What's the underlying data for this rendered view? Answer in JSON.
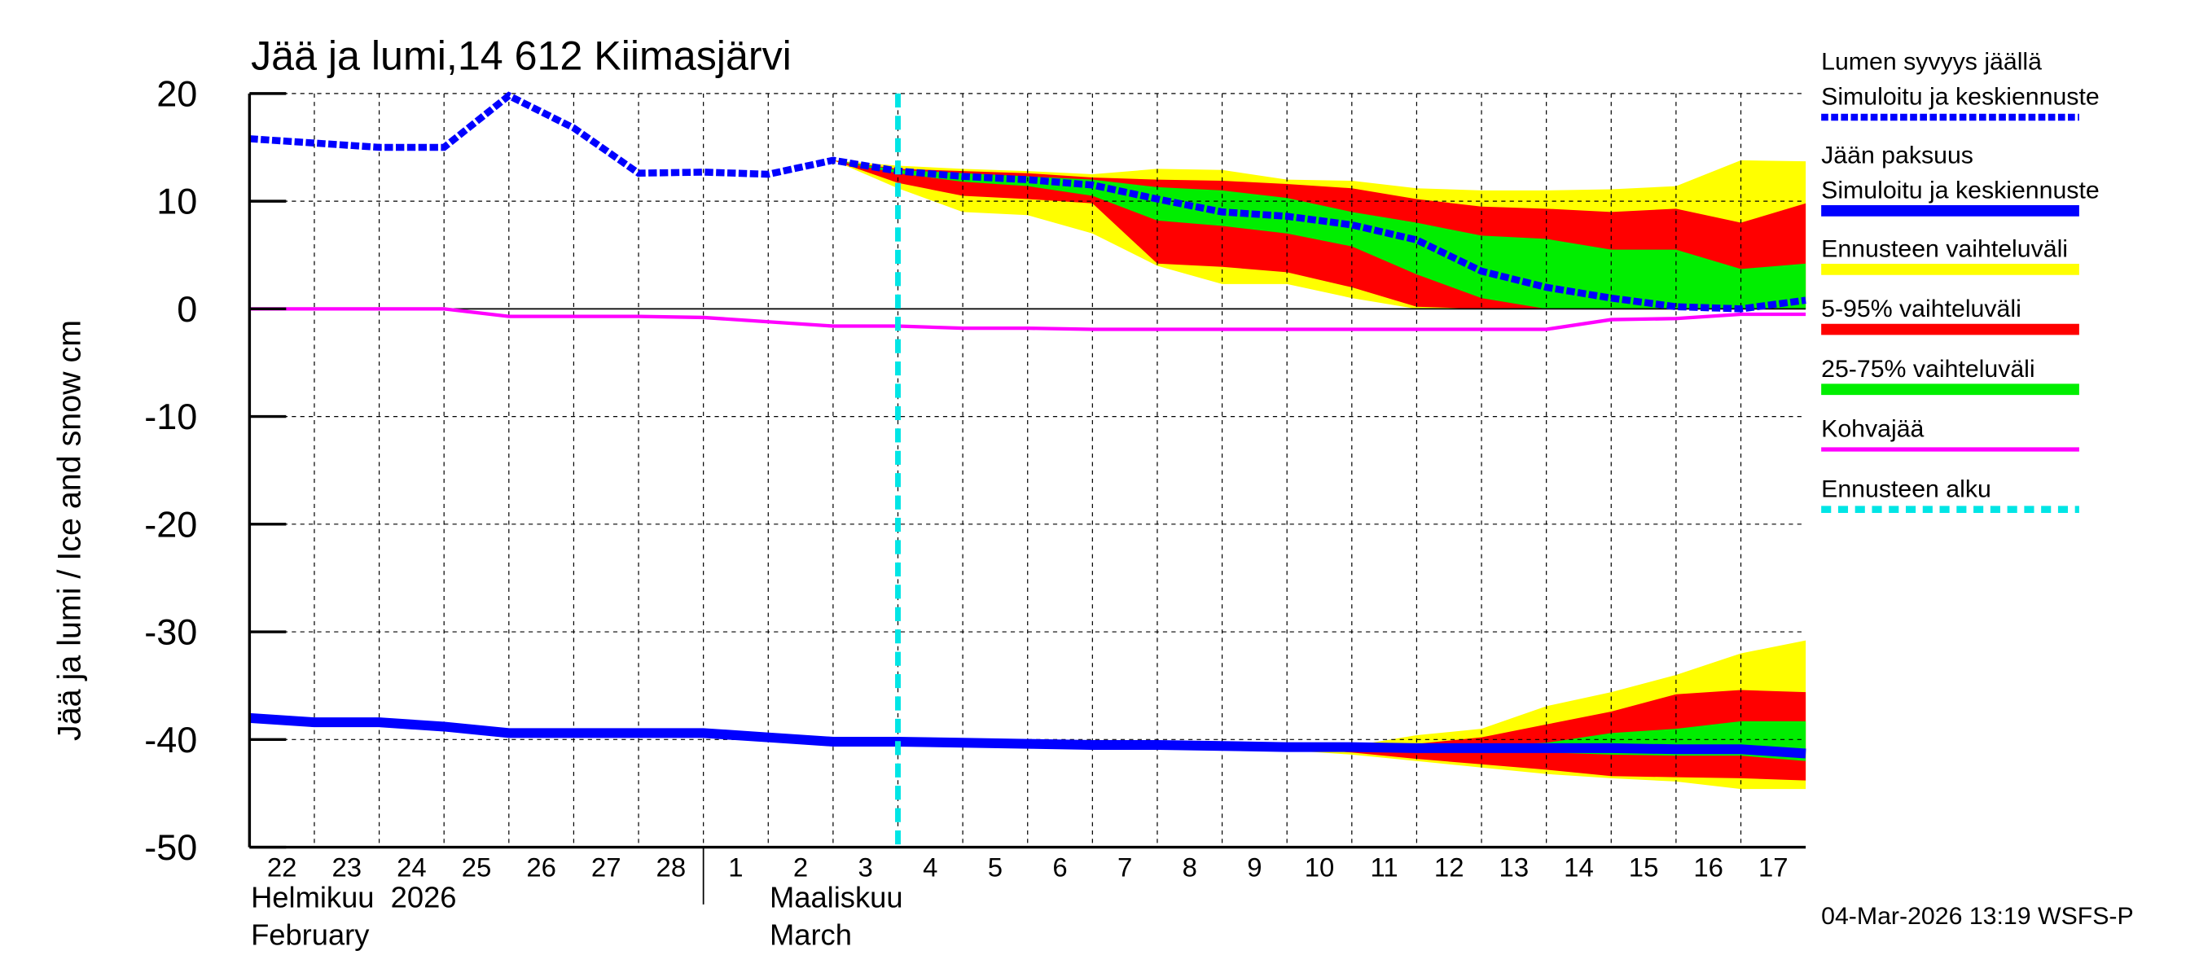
{
  "chart_data": {
    "type": "area",
    "title": "Jää ja lumi,14 612 Kiimasjärvi",
    "ylabel": "Jää ja lumi / Ice and snow    cm",
    "ylim": [
      -50,
      20
    ],
    "yticks": [
      20,
      10,
      0,
      -10,
      -20,
      -30,
      -40,
      -50
    ],
    "xlim": [
      "2026-02-22",
      "2026-03-18"
    ],
    "grid": true,
    "legend_position": "right",
    "x_tick_labels": [
      "22",
      "23",
      "24",
      "25",
      "26",
      "27",
      "28",
      "1",
      "2",
      "3",
      "4",
      "5",
      "6",
      "7",
      "8",
      "9",
      "10",
      "11",
      "12",
      "13",
      "14",
      "15",
      "16",
      "17"
    ],
    "month_labels": [
      {
        "fi": "Helmikuu  2026",
        "en": "February"
      },
      {
        "fi": "Maaliskuu",
        "en": "March"
      }
    ],
    "forecast_start": "2026-03-04",
    "x": [
      "2026-02-22",
      "2026-02-23",
      "2026-02-24",
      "2026-02-25",
      "2026-02-26",
      "2026-02-27",
      "2026-02-28",
      "2026-03-01",
      "2026-03-02",
      "2026-03-03",
      "2026-03-04",
      "2026-03-05",
      "2026-03-06",
      "2026-03-07",
      "2026-03-08",
      "2026-03-09",
      "2026-03-10",
      "2026-03-11",
      "2026-03-12",
      "2026-03-13",
      "2026-03-14",
      "2026-03-15",
      "2026-03-16",
      "2026-03-17",
      "2026-03-18"
    ],
    "snow": {
      "median": [
        15.8,
        15.4,
        15,
        15,
        19.8,
        16.8,
        12.6,
        12.7,
        12.5,
        13.8,
        12.8,
        12.3,
        12,
        11.5,
        10.2,
        9,
        8.6,
        7.8,
        6.4,
        3.5,
        2,
        1,
        0.2,
        0,
        0.8
      ],
      "range_upper": [
        null,
        null,
        null,
        null,
        null,
        null,
        null,
        null,
        null,
        13.8,
        13.3,
        13,
        12.8,
        12.5,
        13,
        12.9,
        12,
        11.9,
        11.2,
        11,
        11,
        11.1,
        11.4,
        13.8,
        13.7
      ],
      "range_lower": [
        null,
        null,
        null,
        null,
        null,
        null,
        null,
        null,
        null,
        13.8,
        11.2,
        9,
        8.7,
        7,
        4,
        2.3,
        2.3,
        1,
        0,
        0,
        0,
        0,
        0,
        0,
        0
      ],
      "p95": [
        null,
        null,
        null,
        null,
        null,
        null,
        null,
        null,
        null,
        13.8,
        13,
        12.8,
        12.6,
        12.2,
        12,
        11.9,
        11.6,
        11.2,
        10.2,
        9.5,
        9.3,
        9,
        9.3,
        8,
        9.8
      ],
      "p5": [
        null,
        null,
        null,
        null,
        null,
        null,
        null,
        null,
        null,
        13.8,
        11.7,
        10.5,
        10.2,
        9.8,
        4.2,
        3.9,
        3.4,
        2,
        0.2,
        0,
        0,
        0,
        0,
        0,
        0
      ],
      "p75": [
        null,
        null,
        null,
        null,
        null,
        null,
        null,
        null,
        null,
        13.8,
        12.9,
        12.6,
        12.3,
        12,
        11.3,
        11,
        10.3,
        9,
        8,
        6.8,
        6.5,
        5.5,
        5.5,
        3.7,
        4.2
      ],
      "p25": [
        null,
        null,
        null,
        null,
        null,
        null,
        null,
        null,
        null,
        13.8,
        12.6,
        11.8,
        11.4,
        10.5,
        8.2,
        7.7,
        7,
        5.8,
        3.2,
        1,
        0,
        0,
        0,
        0,
        0
      ]
    },
    "ice": {
      "median": [
        -38,
        -38.4,
        -38.4,
        -38.8,
        -39.4,
        -39.4,
        -39.4,
        -39.4,
        -39.8,
        -40.2,
        -40.2,
        -40.3,
        -40.4,
        -40.5,
        -40.5,
        -40.6,
        -40.7,
        -40.7,
        -40.8,
        -40.8,
        -40.8,
        -40.8,
        -40.9,
        -40.9,
        -41.3
      ],
      "range_upper": [
        null,
        null,
        null,
        null,
        null,
        null,
        null,
        null,
        null,
        null,
        -40.2,
        -40.3,
        -40.4,
        -40.5,
        -40.5,
        -40.6,
        -40.6,
        -40.6,
        -39.6,
        -39,
        -36.9,
        -35.6,
        -34,
        -32,
        -30.8
      ],
      "range_lower": [
        null,
        null,
        null,
        null,
        null,
        null,
        null,
        null,
        null,
        null,
        -40.2,
        -40.3,
        -40.4,
        -40.5,
        -40.8,
        -41,
        -41,
        -41.4,
        -42,
        -42.6,
        -43.2,
        -43.6,
        -43.9,
        -44.6,
        -44.6
      ],
      "p95": [
        null,
        null,
        null,
        null,
        null,
        null,
        null,
        null,
        null,
        null,
        -40.2,
        -40.3,
        -40.4,
        -40.5,
        -40.5,
        -40.6,
        -40.6,
        -40.6,
        -40.4,
        -39.8,
        -38.6,
        -37.4,
        -35.8,
        -35.4,
        -35.6
      ],
      "p5": [
        null,
        null,
        null,
        null,
        null,
        null,
        null,
        null,
        null,
        null,
        -40.2,
        -40.3,
        -40.4,
        -40.5,
        -40.6,
        -40.7,
        -40.8,
        -41.2,
        -41.8,
        -42.3,
        -42.8,
        -43.4,
        -43.5,
        -43.6,
        -43.8
      ],
      "p75": [
        null,
        null,
        null,
        null,
        null,
        null,
        null,
        null,
        null,
        null,
        -40.2,
        -40.3,
        -40.4,
        -40.5,
        -40.5,
        -40.6,
        -40.7,
        -40.7,
        -40.8,
        -40.6,
        -40.3,
        -39.4,
        -39,
        -38.3,
        -38.3
      ],
      "p25": [
        null,
        null,
        null,
        null,
        null,
        null,
        null,
        null,
        null,
        null,
        -40.2,
        -40.3,
        -40.4,
        -40.5,
        -40.5,
        -40.6,
        -40.7,
        -40.7,
        -40.8,
        -41,
        -41.2,
        -41.4,
        -41.5,
        -41.5,
        -42
      ]
    },
    "slush_ice": [
      0,
      0,
      0,
      0,
      -0.7,
      -0.7,
      -0.7,
      -0.8,
      -1.2,
      -1.6,
      -1.6,
      -1.8,
      -1.8,
      -1.9,
      -1.9,
      -1.9,
      -1.9,
      -1.9,
      -1.9,
      -1.9,
      -1.9,
      -1,
      -0.9,
      -0.5,
      -0.5
    ],
    "colors": {
      "median": "#0000ff",
      "range": "#ffff00",
      "p5_95": "#ff0000",
      "p25_75": "#00ee00",
      "slush": "#ff00ff",
      "forecast_start": "#00e5e5"
    },
    "legend": [
      {
        "title": "Lumen syvyys jäällä",
        "label": "Simuloitu ja keskiennuste",
        "style": "dashed-blue"
      },
      {
        "title": "Jään paksuus",
        "label": "Simuloitu ja keskiennuste",
        "style": "solid-blue"
      },
      {
        "label": "Ennusteen vaihteluväli",
        "style": "yellow"
      },
      {
        "label": "5-95% vaihteluväli",
        "style": "red"
      },
      {
        "label": "25-75% vaihteluväli",
        "style": "green"
      },
      {
        "label": "Kohvajää",
        "style": "magenta"
      },
      {
        "label": "Ennusteen alku",
        "style": "cyan-dashed"
      }
    ],
    "footer": "04-Mar-2026 13:19 WSFS-P"
  }
}
